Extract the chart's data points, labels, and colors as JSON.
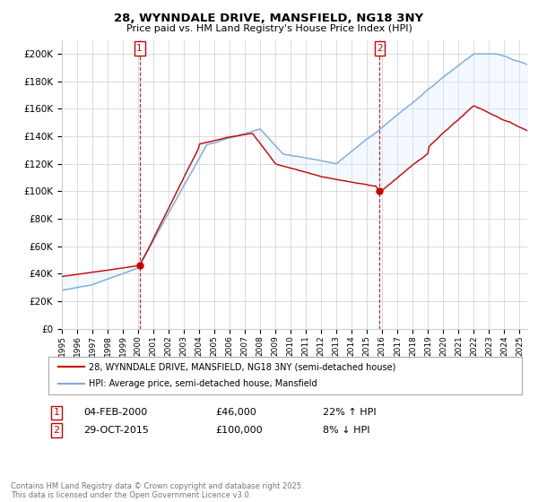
{
  "title": "28, WYNNDALE DRIVE, MANSFIELD, NG18 3NY",
  "subtitle": "Price paid vs. HM Land Registry's House Price Index (HPI)",
  "legend_line1": "28, WYNNDALE DRIVE, MANSFIELD, NG18 3NY (semi-detached house)",
  "legend_line2": "HPI: Average price, semi-detached house, Mansfield",
  "annotation1_date": "04-FEB-2000",
  "annotation1_price": "£46,000",
  "annotation1_hpi": "22% ↑ HPI",
  "annotation1_year": 2000.09,
  "annotation1_val": 46000,
  "annotation2_date": "29-OCT-2015",
  "annotation2_price": "£100,000",
  "annotation2_hpi": "8% ↓ HPI",
  "annotation2_year": 2015.83,
  "annotation2_val": 100000,
  "footer": "Contains HM Land Registry data © Crown copyright and database right 2025.\nThis data is licensed under the Open Government Licence v3.0.",
  "xmin": 1995.0,
  "xmax": 2025.5,
  "ymin": 0,
  "ymax": 210000,
  "yticks": [
    0,
    20000,
    40000,
    60000,
    80000,
    100000,
    120000,
    140000,
    160000,
    180000,
    200000
  ],
  "red_color": "#cc0000",
  "blue_color": "#7aaadd",
  "fill_color": "#ddeeff",
  "annotation_color": "#cc0000",
  "grid_color": "#cccccc",
  "background_color": "#ffffff"
}
